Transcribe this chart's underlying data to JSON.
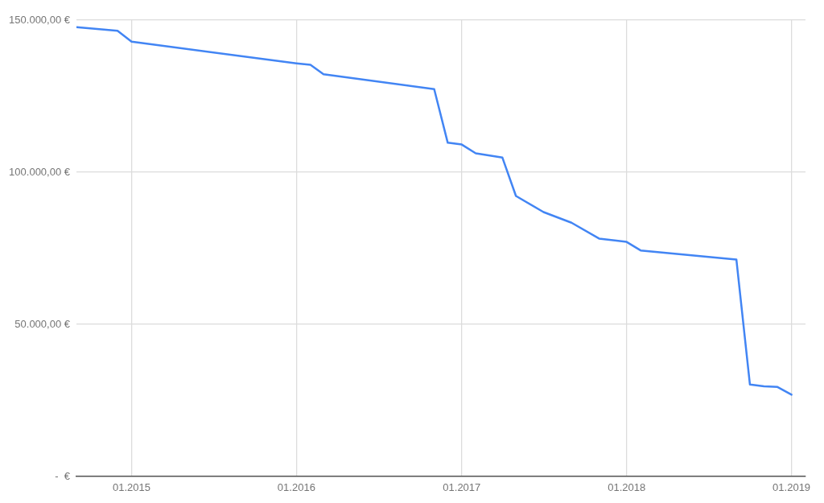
{
  "chart_data": {
    "type": "line",
    "x": [
      "2014-09",
      "2014-11",
      "2014-12",
      "2015-01",
      "2016-01",
      "2016-02",
      "2016-03",
      "2016-11",
      "2016-12",
      "2017-01",
      "2017-02",
      "2017-04",
      "2017-05",
      "2017-07",
      "2017-09",
      "2017-11",
      "2018-01",
      "2018-02",
      "2018-09",
      "2018-10",
      "2018-11",
      "2018-12",
      "2019-01"
    ],
    "series": [
      {
        "color": "#4285f4",
        "values": [
          147700,
          146900,
          146500,
          142900,
          135800,
          135300,
          132200,
          127300,
          109700,
          109100,
          106200,
          104800,
          92200,
          86900,
          83400,
          78200,
          77100,
          74300,
          71300,
          30200,
          29600,
          29400,
          26900
        ]
      }
    ],
    "xlim": [
      "2014-09",
      "2019-02"
    ],
    "xticks": [
      {
        "value": "2015-01",
        "label": "01.2015"
      },
      {
        "value": "2016-01",
        "label": "01.2016"
      },
      {
        "value": "2017-01",
        "label": "01.2017"
      },
      {
        "value": "2018-01",
        "label": "01.2018"
      },
      {
        "value": "2019-01",
        "label": "01.2019"
      }
    ],
    "ylim": [
      0,
      150000
    ],
    "yticks": [
      {
        "value": 0,
        "label": "-  €"
      },
      {
        "value": 50000,
        "label": "50.000,00 €"
      },
      {
        "value": 100000,
        "label": "100.000,00 €"
      },
      {
        "value": 150000,
        "label": "150.000,00 €"
      }
    ],
    "grid": true
  }
}
